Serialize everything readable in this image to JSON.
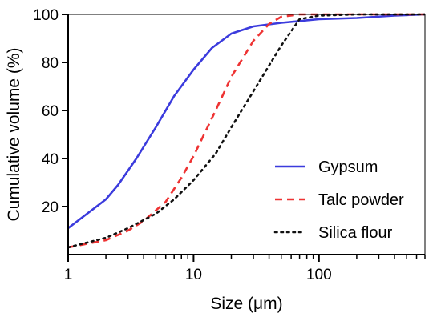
{
  "chart_data": {
    "type": "line",
    "title": "",
    "xlabel": "Size (μm)",
    "ylabel": "Cumulative volume (%)",
    "x_scale": "log",
    "xlim": [
      1,
      700
    ],
    "ylim": [
      0,
      100
    ],
    "x_ticks": [
      {
        "value": 1,
        "label": "1"
      },
      {
        "value": 10,
        "label": "10"
      },
      {
        "value": 100,
        "label": "100"
      }
    ],
    "y_ticks": [
      {
        "value": 20,
        "label": "20"
      },
      {
        "value": 40,
        "label": "40"
      },
      {
        "value": 60,
        "label": "60"
      },
      {
        "value": 80,
        "label": "80"
      },
      {
        "value": 100,
        "label": "100"
      }
    ],
    "grid": false,
    "legend_position": "bottom-right",
    "series": [
      {
        "name": "Gypsum",
        "color": "#3b3bdd",
        "dash": "solid",
        "points": [
          [
            1,
            11
          ],
          [
            2,
            23
          ],
          [
            2.5,
            29
          ],
          [
            3.5,
            40
          ],
          [
            5,
            53
          ],
          [
            7,
            66
          ],
          [
            10,
            77
          ],
          [
            14,
            86
          ],
          [
            20,
            92
          ],
          [
            30,
            95
          ],
          [
            50,
            96.5
          ],
          [
            100,
            98
          ],
          [
            200,
            98.5
          ],
          [
            400,
            99.5
          ],
          [
            700,
            100
          ]
        ]
      },
      {
        "name": "Talc powder",
        "color": "#ee3333",
        "dash": "dashed",
        "points": [
          [
            1,
            3
          ],
          [
            2,
            6
          ],
          [
            3,
            10
          ],
          [
            4,
            14
          ],
          [
            6,
            22
          ],
          [
            8,
            32
          ],
          [
            10,
            41
          ],
          [
            15,
            60
          ],
          [
            20,
            74
          ],
          [
            30,
            89
          ],
          [
            40,
            96
          ],
          [
            50,
            99
          ],
          [
            70,
            100
          ],
          [
            700,
            100
          ]
        ]
      },
      {
        "name": "Silica flour",
        "color": "#111111",
        "dash": "dotted",
        "points": [
          [
            1,
            3
          ],
          [
            2,
            7
          ],
          [
            3,
            11
          ],
          [
            5,
            17
          ],
          [
            7,
            23
          ],
          [
            10,
            31
          ],
          [
            15,
            42
          ],
          [
            20,
            53
          ],
          [
            30,
            68
          ],
          [
            50,
            87
          ],
          [
            70,
            98
          ],
          [
            100,
            99.5
          ],
          [
            200,
            100
          ],
          [
            700,
            100
          ]
        ]
      }
    ]
  }
}
